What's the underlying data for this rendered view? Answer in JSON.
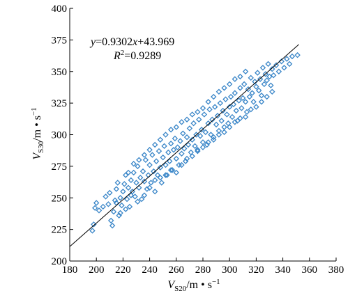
{
  "chart_data": {
    "type": "scatter",
    "xlabel": {
      "base": "V",
      "sub": "S20",
      "unit": "/m • s",
      "sup": "−1"
    },
    "ylabel": {
      "base": "V",
      "sub": "S30",
      "unit": "/m • s",
      "sup": "−1"
    },
    "xlim": [
      180,
      380
    ],
    "ylim": [
      200,
      400
    ],
    "xticks": [
      180,
      200,
      220,
      240,
      260,
      280,
      300,
      320,
      340,
      360,
      380
    ],
    "yticks": [
      200,
      225,
      250,
      275,
      300,
      325,
      350,
      375,
      400
    ],
    "grid": false,
    "fit_line": {
      "slope": 0.9302,
      "intercept": 43.969
    },
    "annotations": {
      "equation": {
        "y": "y",
        "eq": "=0.9302",
        "x": "x",
        "rest": "+43.969"
      },
      "r_squared": {
        "r": "R",
        "sup": "2",
        "rest": "=0.9289"
      }
    },
    "marker": {
      "shape": "diamond",
      "color": "#3a86c8"
    },
    "series": [
      {
        "points": [
          [
            197,
            224
          ],
          [
            198,
            229
          ],
          [
            199,
            242
          ],
          [
            200,
            246
          ],
          [
            202,
            240
          ],
          [
            205,
            243
          ],
          [
            207,
            251
          ],
          [
            209,
            245
          ],
          [
            210,
            254
          ],
          [
            211,
            232
          ],
          [
            212,
            228
          ],
          [
            213,
            239
          ],
          [
            214,
            248
          ],
          [
            215,
            257
          ],
          [
            216,
            262
          ],
          [
            217,
            236
          ],
          [
            218,
            250
          ],
          [
            219,
            244
          ],
          [
            220,
            255
          ],
          [
            221,
            261
          ],
          [
            222,
            268
          ],
          [
            223,
            249
          ],
          [
            224,
            258
          ],
          [
            225,
            243
          ],
          [
            226,
            264
          ],
          [
            227,
            255
          ],
          [
            228,
            270
          ],
          [
            229,
            251
          ],
          [
            230,
            262
          ],
          [
            231,
            275
          ],
          [
            232,
            258
          ],
          [
            233,
            266
          ],
          [
            234,
            249
          ],
          [
            235,
            271
          ],
          [
            236,
            263
          ],
          [
            237,
            280
          ],
          [
            238,
            257
          ],
          [
            239,
            268
          ],
          [
            240,
            276
          ],
          [
            241,
            262
          ],
          [
            242,
            284
          ],
          [
            243,
            271
          ],
          [
            244,
            255
          ],
          [
            245,
            279
          ],
          [
            246,
            268
          ],
          [
            247,
            287
          ],
          [
            248,
            274
          ],
          [
            249,
            262
          ],
          [
            250,
            282
          ],
          [
            251,
            291
          ],
          [
            252,
            276
          ],
          [
            253,
            268
          ],
          [
            254,
            286
          ],
          [
            255,
            279
          ],
          [
            256,
            293
          ],
          [
            257,
            272
          ],
          [
            258,
            288
          ],
          [
            259,
            297
          ],
          [
            260,
            281
          ],
          [
            261,
            290
          ],
          [
            262,
            276
          ],
          [
            263,
            295
          ],
          [
            264,
            285
          ],
          [
            265,
            301
          ],
          [
            266,
            289
          ],
          [
            267,
            279
          ],
          [
            268,
            298
          ],
          [
            269,
            292
          ],
          [
            270,
            305
          ],
          [
            271,
            286
          ],
          [
            272,
            296
          ],
          [
            273,
            309
          ],
          [
            274,
            291
          ],
          [
            275,
            300
          ],
          [
            276,
            287
          ],
          [
            277,
            312
          ],
          [
            278,
            299
          ],
          [
            279,
            304
          ],
          [
            280,
            294
          ],
          [
            281,
            316
          ],
          [
            282,
            302
          ],
          [
            283,
            292
          ],
          [
            284,
            309
          ],
          [
            285,
            320
          ],
          [
            286,
            300
          ],
          [
            287,
            312
          ],
          [
            288,
            298
          ],
          [
            289,
            322
          ],
          [
            290,
            308
          ],
          [
            291,
            315
          ],
          [
            292,
            303
          ],
          [
            293,
            325
          ],
          [
            294,
            311
          ],
          [
            295,
            319
          ],
          [
            296,
            306
          ],
          [
            297,
            328
          ],
          [
            298,
            316
          ],
          [
            299,
            309
          ],
          [
            300,
            322
          ],
          [
            301,
            330
          ],
          [
            302,
            314
          ],
          [
            303,
            324
          ],
          [
            304,
            333
          ],
          [
            305,
            319
          ],
          [
            306,
            311
          ],
          [
            307,
            327
          ],
          [
            308,
            337
          ],
          [
            309,
            321
          ],
          [
            310,
            329
          ],
          [
            311,
            340
          ],
          [
            312,
            326
          ],
          [
            313,
            318
          ],
          [
            314,
            336
          ],
          [
            315,
            330
          ],
          [
            316,
            345
          ],
          [
            317,
            333
          ],
          [
            318,
            326
          ],
          [
            319,
            342
          ],
          [
            320,
            338
          ],
          [
            321,
            349
          ],
          [
            322,
            335
          ],
          [
            323,
            344
          ],
          [
            324,
            331
          ],
          [
            325,
            353
          ],
          [
            326,
            340
          ],
          [
            327,
            348
          ],
          [
            328,
            343
          ],
          [
            329,
            356
          ],
          [
            330,
            346
          ],
          [
            331,
            339
          ],
          [
            332,
            352
          ],
          [
            333,
            347
          ],
          [
            335,
            355
          ],
          [
            337,
            350
          ],
          [
            339,
            358
          ],
          [
            341,
            353
          ],
          [
            343,
            360
          ],
          [
            345,
            356
          ],
          [
            347,
            362
          ],
          [
            351,
            363
          ],
          [
            215,
            246
          ],
          [
            218,
            238
          ],
          [
            222,
            241
          ],
          [
            226,
            252
          ],
          [
            231,
            247
          ],
          [
            236,
            252
          ],
          [
            240,
            258
          ],
          [
            244,
            264
          ],
          [
            248,
            266
          ],
          [
            252,
            268
          ],
          [
            256,
            272
          ],
          [
            260,
            270
          ],
          [
            264,
            276
          ],
          [
            268,
            281
          ],
          [
            272,
            283
          ],
          [
            276,
            288
          ],
          [
            280,
            290
          ],
          [
            284,
            294
          ],
          [
            288,
            296
          ],
          [
            292,
            300
          ],
          [
            296,
            302
          ],
          [
            300,
            306
          ],
          [
            304,
            310
          ],
          [
            308,
            313
          ],
          [
            312,
            314
          ],
          [
            316,
            320
          ],
          [
            320,
            322
          ],
          [
            324,
            326
          ],
          [
            328,
            330
          ],
          [
            332,
            334
          ],
          [
            224,
            270
          ],
          [
            228,
            277
          ],
          [
            232,
            280
          ],
          [
            236,
            284
          ],
          [
            240,
            288
          ],
          [
            244,
            292
          ],
          [
            248,
            296
          ],
          [
            252,
            300
          ],
          [
            256,
            304
          ],
          [
            260,
            306
          ],
          [
            264,
            310
          ],
          [
            268,
            312
          ],
          [
            272,
            316
          ],
          [
            276,
            318
          ],
          [
            280,
            321
          ],
          [
            284,
            326
          ],
          [
            288,
            330
          ],
          [
            292,
            334
          ],
          [
            296,
            337
          ],
          [
            300,
            340
          ],
          [
            304,
            344
          ],
          [
            308,
            346
          ],
          [
            312,
            350
          ]
        ]
      }
    ]
  }
}
